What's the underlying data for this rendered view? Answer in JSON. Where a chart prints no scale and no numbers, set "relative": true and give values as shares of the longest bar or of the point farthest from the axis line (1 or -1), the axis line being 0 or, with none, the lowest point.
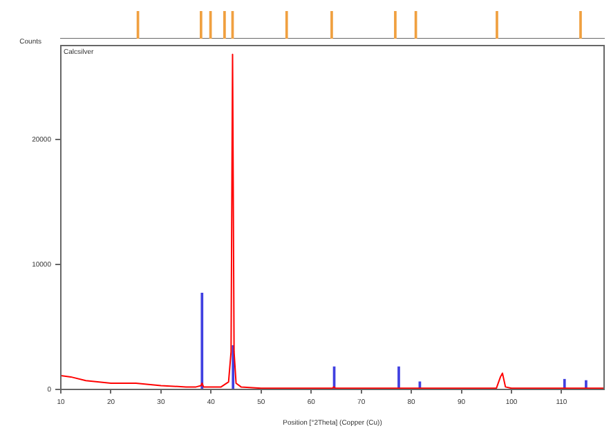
{
  "chart_data": [
    {
      "type": "bar",
      "relative": true,
      "x": [
        25.4,
        38.0,
        39.9,
        42.7,
        44.3,
        55.1,
        64.1,
        76.8,
        80.9,
        97.1,
        113.8
      ],
      "values": [
        1,
        1,
        1,
        1,
        1,
        1,
        1,
        1,
        1,
        1,
        1
      ],
      "color": "#f0a040",
      "xlim": [
        10,
        118.5
      ],
      "tick_labels": false
    },
    {
      "type": "line",
      "ylabel": "Counts",
      "xlabel": "Position [°2Theta] (Copper (Cu))",
      "annotations": [
        "Calcsilver"
      ],
      "xlim": [
        10,
        118.5
      ],
      "xticks": [
        10,
        20,
        30,
        40,
        50,
        60,
        70,
        80,
        90,
        100,
        110
      ],
      "ylim": [
        0,
        27500
      ],
      "yticks": [
        0,
        10000,
        20000
      ],
      "grid": false,
      "legend": false,
      "series": [
        {
          "color": "#ff0000",
          "x": [
            10,
            12,
            15,
            20,
            25,
            30,
            35,
            37,
            38.0,
            38.2,
            38.5,
            39,
            42,
            43.5,
            44.0,
            44.3,
            44.6,
            45,
            46,
            50,
            60,
            64.3,
            64.5,
            64.8,
            70,
            80,
            97,
            97.8,
            98.2,
            98.8,
            100,
            110,
            118.5
          ],
          "values": [
            1100,
            1000,
            700,
            500,
            500,
            300,
            200,
            200,
            300,
            500,
            200,
            200,
            200,
            600,
            3000,
            26800,
            3000,
            500,
            200,
            100,
            100,
            100,
            200,
            100,
            100,
            100,
            100,
            1000,
            1300,
            200,
            100,
            100,
            100
          ]
        },
        {
          "type": "bar",
          "color": "#4040e0",
          "x": [
            38.2,
            44.4,
            64.6,
            77.5,
            81.7,
            110.6,
            114.9
          ],
          "values": [
            7700,
            3500,
            1800,
            1800,
            600,
            800,
            700
          ]
        }
      ]
    }
  ]
}
